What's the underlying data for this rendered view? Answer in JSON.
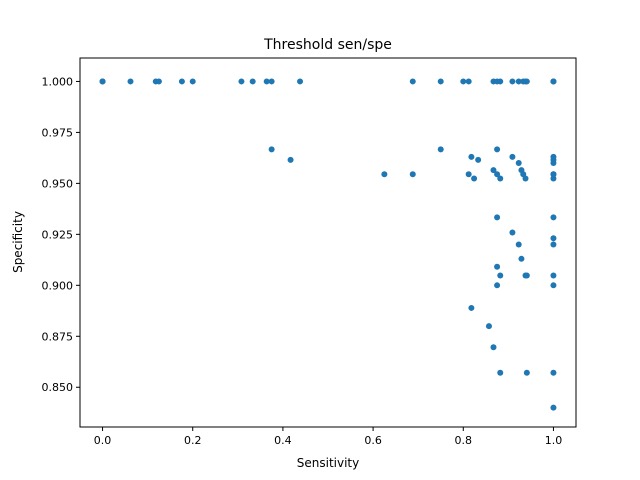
{
  "chart_data": {
    "type": "scatter",
    "title": "Threshold sen/spe",
    "xlabel": "Sensitivity",
    "ylabel": "Specificity",
    "xlim": [
      -0.05,
      1.05
    ],
    "ylim": [
      0.8305,
      1.0115
    ],
    "x_ticks": [
      0.0,
      0.2,
      0.4,
      0.6,
      0.8,
      1.0
    ],
    "x_tick_labels": [
      "0.0",
      "0.2",
      "0.4",
      "0.6",
      "0.8",
      "1.0"
    ],
    "y_ticks": [
      0.85,
      0.875,
      0.9,
      0.925,
      0.95,
      0.975,
      1.0
    ],
    "y_tick_labels": [
      "0.850",
      "0.875",
      "0.900",
      "0.925",
      "0.950",
      "0.975",
      "1.000"
    ],
    "grid": false,
    "legend": "none",
    "marker_color": "#1f77b4",
    "points": [
      [
        0.0,
        1.0
      ],
      [
        0.0,
        1.0
      ],
      [
        0.0,
        1.0
      ],
      [
        0.062,
        1.0
      ],
      [
        0.118,
        1.0
      ],
      [
        0.125,
        1.0
      ],
      [
        0.176,
        1.0
      ],
      [
        0.2,
        1.0
      ],
      [
        0.308,
        1.0
      ],
      [
        0.333,
        1.0
      ],
      [
        0.364,
        1.0
      ],
      [
        0.375,
        1.0
      ],
      [
        0.438,
        1.0
      ],
      [
        0.688,
        1.0
      ],
      [
        0.75,
        1.0
      ],
      [
        0.8,
        1.0
      ],
      [
        0.812,
        1.0
      ],
      [
        0.867,
        1.0
      ],
      [
        0.875,
        1.0
      ],
      [
        0.882,
        1.0
      ],
      [
        0.909,
        1.0
      ],
      [
        0.923,
        1.0
      ],
      [
        0.933,
        1.0
      ],
      [
        0.938,
        1.0
      ],
      [
        0.941,
        1.0
      ],
      [
        1.0,
        1.0
      ],
      [
        1.0,
        1.0
      ],
      [
        1.0,
        1.0
      ],
      [
        0.375,
        0.9667
      ],
      [
        0.417,
        0.9615
      ],
      [
        0.625,
        0.9545
      ],
      [
        0.688,
        0.9545
      ],
      [
        0.75,
        0.9667
      ],
      [
        0.812,
        0.9545
      ],
      [
        0.818,
        0.963
      ],
      [
        0.824,
        0.9524
      ],
      [
        0.833,
        0.9615
      ],
      [
        0.867,
        0.9565
      ],
      [
        0.875,
        0.9667
      ],
      [
        0.875,
        0.9545
      ],
      [
        0.882,
        0.9524
      ],
      [
        0.909,
        0.963
      ],
      [
        0.923,
        0.96
      ],
      [
        0.929,
        0.9565
      ],
      [
        0.933,
        0.9545
      ],
      [
        0.938,
        0.9524
      ],
      [
        1.0,
        0.963
      ],
      [
        1.0,
        0.9615
      ],
      [
        1.0,
        0.96
      ],
      [
        1.0,
        0.9545
      ],
      [
        1.0,
        0.9524
      ],
      [
        1.0,
        0.9545
      ],
      [
        0.875,
        0.9333
      ],
      [
        0.909,
        0.9259
      ],
      [
        0.923,
        0.92
      ],
      [
        0.929,
        0.913
      ],
      [
        1.0,
        0.9333
      ],
      [
        1.0,
        0.9231
      ],
      [
        1.0,
        0.92
      ],
      [
        0.875,
        0.9091
      ],
      [
        0.882,
        0.9048
      ],
      [
        0.875,
        0.9
      ],
      [
        0.938,
        0.9048
      ],
      [
        0.941,
        0.9048
      ],
      [
        1.0,
        0.9048
      ],
      [
        1.0,
        0.9
      ],
      [
        0.818,
        0.8889
      ],
      [
        0.857,
        0.88
      ],
      [
        0.867,
        0.8696
      ],
      [
        0.882,
        0.8571
      ],
      [
        0.941,
        0.8571
      ],
      [
        1.0,
        0.8571
      ],
      [
        1.0,
        0.84
      ]
    ]
  }
}
